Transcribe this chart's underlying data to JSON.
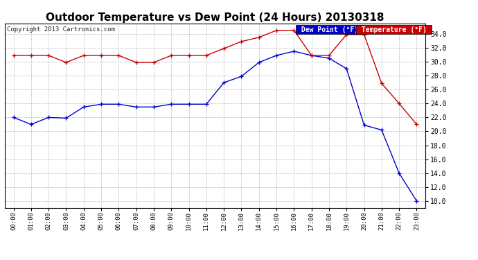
{
  "title": "Outdoor Temperature vs Dew Point (24 Hours) 20130318",
  "copyright": "Copyright 2013 Cartronics.com",
  "ylim": [
    9.0,
    35.5
  ],
  "yticks": [
    10.0,
    12.0,
    14.0,
    16.0,
    18.0,
    20.0,
    22.0,
    24.0,
    26.0,
    28.0,
    30.0,
    32.0,
    34.0
  ],
  "hours": [
    "00:00",
    "01:00",
    "02:00",
    "03:00",
    "04:00",
    "05:00",
    "06:00",
    "07:00",
    "08:00",
    "09:00",
    "10:00",
    "11:00",
    "12:00",
    "13:00",
    "14:00",
    "15:00",
    "16:00",
    "17:00",
    "18:00",
    "19:00",
    "20:00",
    "21:00",
    "22:00",
    "23:00"
  ],
  "temperature": [
    30.9,
    30.9,
    30.9,
    29.9,
    30.9,
    30.9,
    30.9,
    29.9,
    29.9,
    30.9,
    30.9,
    30.9,
    31.9,
    32.9,
    33.5,
    34.5,
    34.5,
    30.9,
    30.9,
    33.9,
    33.9,
    26.9,
    24.0,
    21.0
  ],
  "dew_point": [
    22.0,
    21.0,
    22.0,
    21.9,
    23.5,
    23.9,
    23.9,
    23.5,
    23.5,
    23.9,
    23.9,
    23.9,
    27.0,
    27.9,
    29.9,
    30.9,
    31.5,
    30.9,
    30.5,
    29.0,
    20.9,
    20.2,
    14.0,
    10.0
  ],
  "temp_color": "#cc0000",
  "dew_color": "#0000cc",
  "bg_color": "#ffffff",
  "grid_color": "#bbbbbb",
  "title_fontsize": 11,
  "legend_labels": [
    "Dew Point (°F)",
    "Temperature (°F)"
  ],
  "legend_bg_colors": [
    "#0000cc",
    "#cc0000"
  ],
  "legend_text_color": "#ffffff"
}
